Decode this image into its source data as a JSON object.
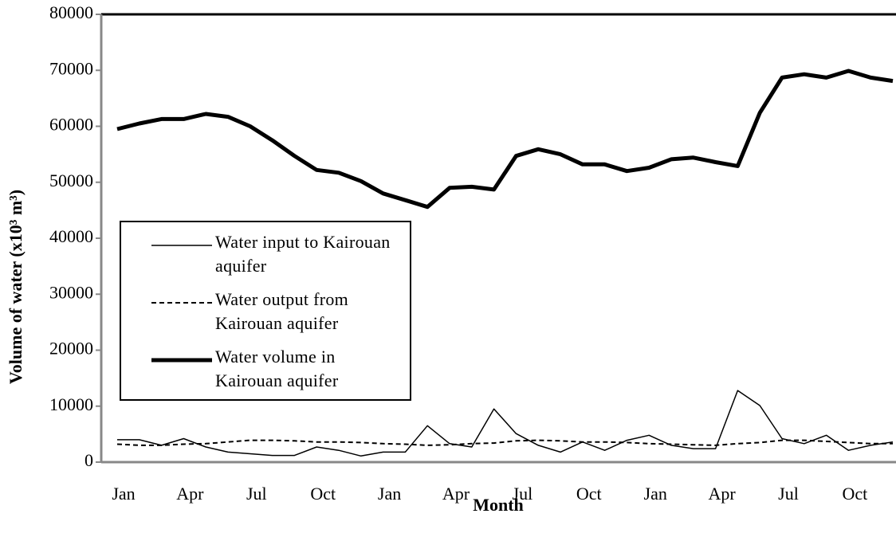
{
  "chart_data": {
    "type": "line",
    "xlabel": "Month",
    "ylabel": "Volume of water (x10³ m³)",
    "categories": [
      "Jan",
      null,
      null,
      "Apr",
      null,
      null,
      "Jul",
      null,
      null,
      "Oct",
      null,
      null,
      "Jan",
      null,
      null,
      "Apr",
      null,
      null,
      "Jul",
      null,
      null,
      "Oct",
      null,
      null,
      "Jan",
      null,
      null,
      "Apr",
      null,
      null,
      "Jul",
      null,
      null,
      "Oct",
      null,
      null
    ],
    "ylim": [
      0,
      80000
    ],
    "yticks": [
      0,
      10000,
      20000,
      30000,
      40000,
      50000,
      60000,
      70000,
      80000
    ],
    "grid": false,
    "legend": "left",
    "series": [
      {
        "name": "Water input to Kairouan aquifer",
        "color": "#000000",
        "line_width": 1.5,
        "dash": "none",
        "values": [
          4000,
          4000,
          3000,
          4200,
          2700,
          1800,
          1500,
          1200,
          1200,
          2700,
          2100,
          1100,
          1800,
          1800,
          6500,
          3300,
          2700,
          9500,
          5100,
          3000,
          1800,
          3600,
          2100,
          3900,
          4800,
          3000,
          2400,
          2400,
          12800,
          10100,
          4200,
          3300,
          4800,
          2100,
          3000,
          3600
        ]
      },
      {
        "name": "Water output from Kairouan aquifer",
        "color": "#000000",
        "line_width": 2,
        "dash": "6,4",
        "values": [
          3200,
          3000,
          3000,
          3200,
          3300,
          3600,
          3900,
          3900,
          3800,
          3600,
          3600,
          3500,
          3300,
          3200,
          3000,
          3100,
          3300,
          3400,
          3800,
          3900,
          3800,
          3600,
          3600,
          3500,
          3300,
          3200,
          3100,
          3000,
          3300,
          3500,
          3900,
          3900,
          3700,
          3500,
          3300,
          3300
        ]
      },
      {
        "name": "Water volume in Kairouan aquifer",
        "color": "#000000",
        "line_width": 5,
        "dash": "none",
        "values": [
          59500,
          60500,
          61300,
          61300,
          62200,
          61700,
          60000,
          57500,
          54700,
          52200,
          51700,
          50200,
          48000,
          46800,
          45600,
          49000,
          49200,
          48700,
          54700,
          55900,
          55000,
          53200,
          53200,
          52000,
          52600,
          54100,
          54400,
          53600,
          52900,
          62400,
          68700,
          69300,
          68700,
          69900,
          68700,
          68100
        ]
      }
    ]
  }
}
